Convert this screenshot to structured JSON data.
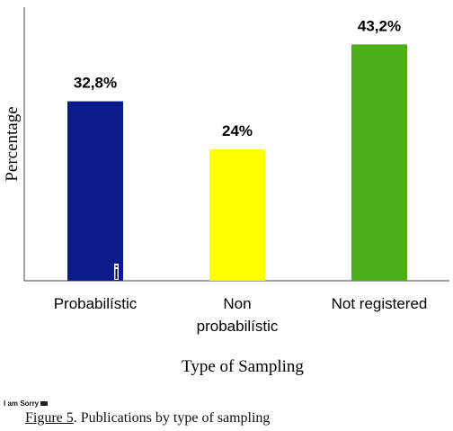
{
  "chart_data": {
    "type": "bar",
    "categories": [
      [
        "Probabilístic"
      ],
      [
        "Non",
        "probabilístic"
      ],
      [
        "Not registered"
      ]
    ],
    "values": [
      32.8,
      24,
      43.2
    ],
    "data_labels": [
      "32,8%",
      "24%",
      "43,2%"
    ],
    "colors": [
      "#0a1a8a",
      "#ffff00",
      "#4caf1a"
    ],
    "xlabel": "Type of Sampling",
    "ylabel": "Percentage",
    "ylim": [
      0,
      50
    ],
    "grid": false,
    "legend": "none"
  },
  "note": {
    "text": "I am Sorry"
  },
  "caption": {
    "ref": "Figure 5",
    "text": ". Publications by type of sampling"
  }
}
